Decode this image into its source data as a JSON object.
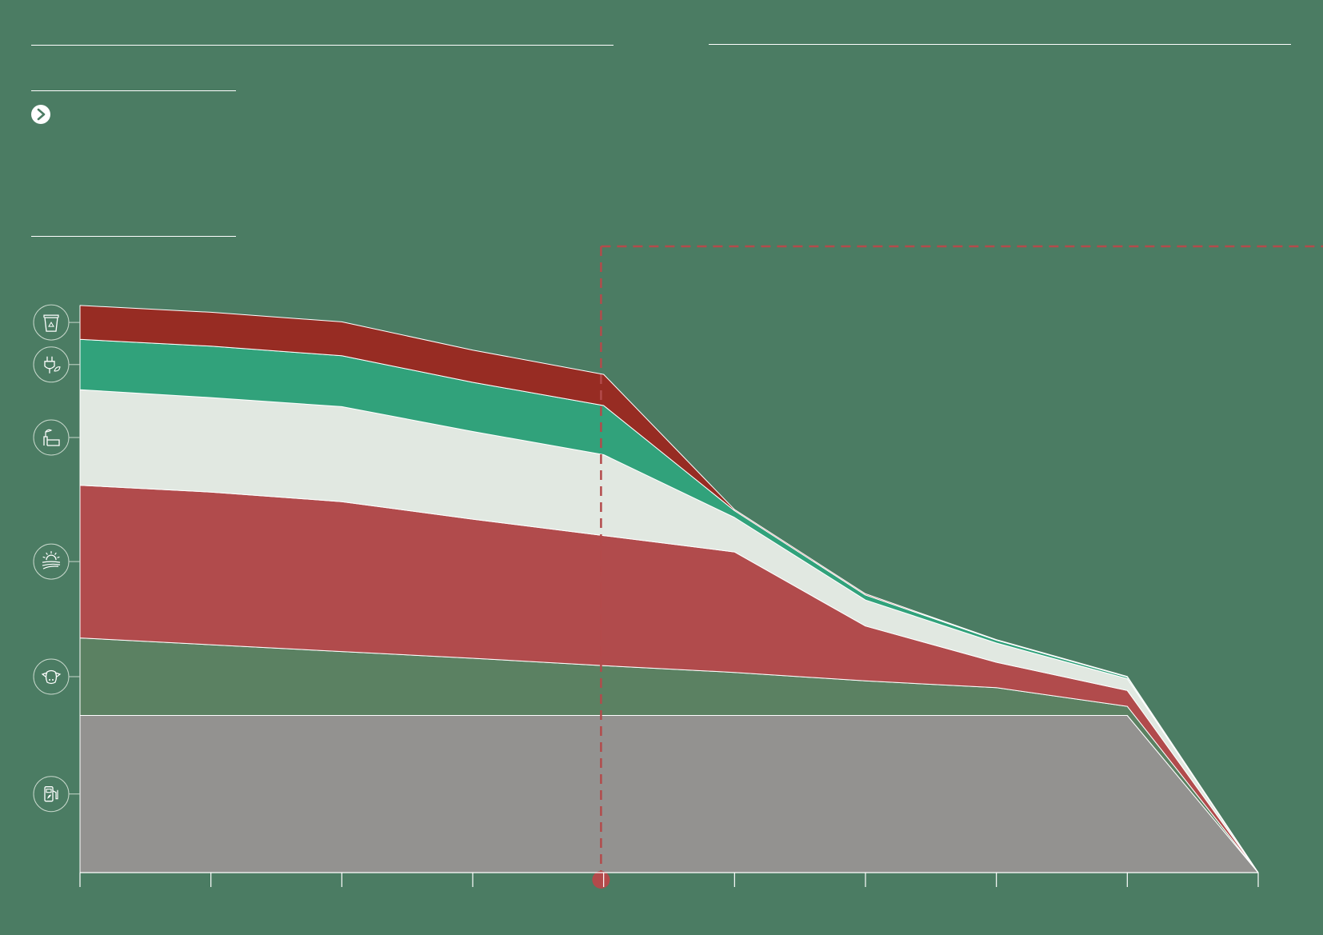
{
  "colors": {
    "page_background": "#4b7c63",
    "rules": "#ffffff",
    "marker": "#b34a4b"
  },
  "header": {
    "arrow_icon": "chevron-right-circle-icon"
  },
  "chart_data": {
    "type": "area",
    "stacked": true,
    "x_positions": [
      0,
      1,
      2,
      3,
      4,
      5,
      6,
      7,
      8,
      9
    ],
    "x_ticks_count": 10,
    "y_range": [
      0,
      100
    ],
    "grid": false,
    "legend": "icons-left",
    "series": [
      {
        "icon": "fuel-pump-icon",
        "color": "#939290",
        "values": [
          27.8,
          27.8,
          27.8,
          27.8,
          27.8,
          27.8,
          27.8,
          27.8,
          27.8,
          0
        ]
      },
      {
        "icon": "cow-icon",
        "color": "#5b8162",
        "values": [
          13.7,
          12.5,
          11.3,
          10.1,
          8.8,
          7.6,
          6.1,
          4.9,
          1.6,
          0
        ]
      },
      {
        "icon": "farmland-sun-icon",
        "color": "#b14b4c",
        "values": [
          27.0,
          27.0,
          26.5,
          24.6,
          23.0,
          21.3,
          9.7,
          4.5,
          2.8,
          0
        ]
      },
      {
        "icon": "factory-plant-icon",
        "color": "#e1e8e1",
        "values": [
          16.9,
          16.7,
          16.8,
          15.5,
          14.3,
          6.1,
          4.6,
          3.4,
          2.1,
          0
        ]
      },
      {
        "icon": "plug-leaf-icon",
        "color": "#31a27b",
        "values": [
          8.9,
          9.1,
          9.0,
          8.7,
          8.7,
          1.2,
          0.9,
          0.5,
          0.3,
          0
        ]
      },
      {
        "icon": "recycle-bin-icon",
        "color": "#972c23",
        "values": [
          6.0,
          6.0,
          6.0,
          5.7,
          5.5,
          0.2,
          0.2,
          0.1,
          0.1,
          0
        ]
      }
    ],
    "marker": {
      "x_position": 3.98,
      "color": "#b34a4b",
      "style": "dashed"
    }
  }
}
